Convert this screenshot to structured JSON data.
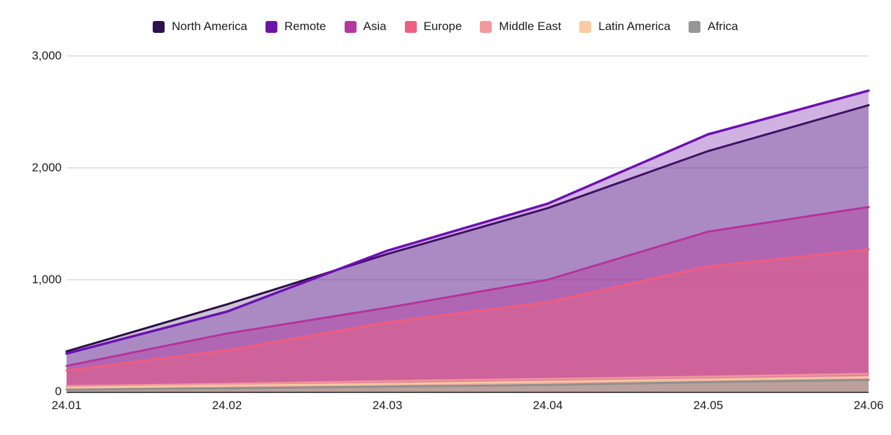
{
  "chart": {
    "y_tick_labels": [
      "3,000",
      "2,000",
      "1,000",
      "0"
    ],
    "y_tick_values": [
      3000,
      2000,
      1000,
      0
    ]
  },
  "chart_data": {
    "type": "area",
    "overlapping": true,
    "title": "",
    "xlabel": "",
    "ylabel": "",
    "x": [
      "24.01",
      "24.02",
      "24.03",
      "24.04",
      "24.05",
      "24.06"
    ],
    "ylim": [
      0,
      3000
    ],
    "grid": "horizontal",
    "legend_position": "top",
    "series": [
      {
        "name": "North America",
        "color": "#2d1150",
        "line_color": "#2a0e45",
        "fill_opacity": 0.25,
        "line_width": 3,
        "values": [
          360,
          780,
          1230,
          1640,
          2150,
          2560
        ]
      },
      {
        "name": "Remote",
        "color": "#6d14a8",
        "line_color": "#6d0fb4",
        "fill_opacity": 0.33,
        "line_width": 3.5,
        "values": [
          340,
          715,
          1260,
          1680,
          2300,
          2690
        ]
      },
      {
        "name": "Asia",
        "color": "#b5369e",
        "line_color": "#b5339c",
        "fill_opacity": 0.42,
        "line_width": 3,
        "values": [
          230,
          520,
          750,
          1000,
          1430,
          1650
        ]
      },
      {
        "name": "Europe",
        "color": "#ee5f82",
        "line_color": "#f25c7e",
        "fill_opacity": 0.5,
        "line_width": 3,
        "values": [
          190,
          370,
          620,
          800,
          1120,
          1270
        ]
      },
      {
        "name": "Middle East",
        "color": "#f2989e",
        "line_color": "#f0959c",
        "fill_opacity": 0.55,
        "line_width": 2.5,
        "values": [
          50,
          70,
          95,
          115,
          135,
          160
        ]
      },
      {
        "name": "Latin America",
        "color": "#f8cba2",
        "line_color": "#f8c9a0",
        "fill_opacity": 0.6,
        "line_width": 2.5,
        "values": [
          35,
          55,
          70,
          90,
          110,
          130
        ]
      },
      {
        "name": "Africa",
        "color": "#979797",
        "line_color": "#8f8f8f",
        "fill_opacity": 0.6,
        "line_width": 3,
        "values": [
          18,
          30,
          45,
          60,
          85,
          105
        ]
      }
    ]
  }
}
